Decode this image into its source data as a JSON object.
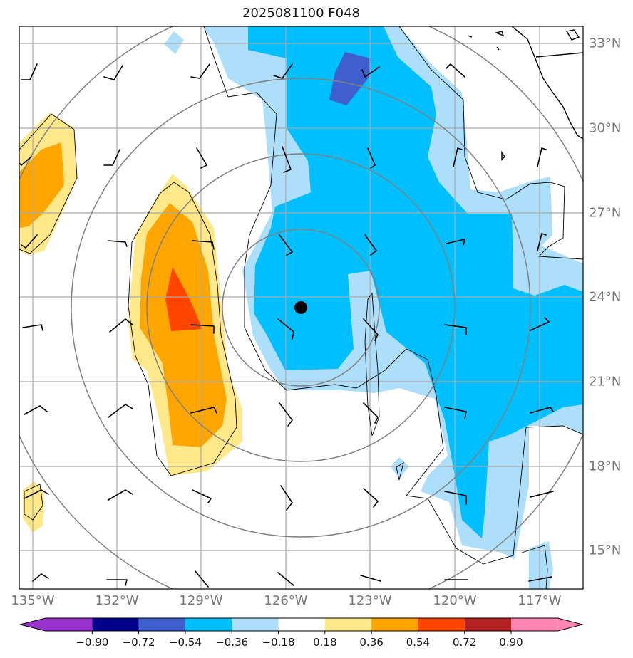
{
  "title": "2025081100 F048",
  "map": {
    "projection": "lat-lon",
    "lon_range_deg": [
      -135.5,
      -115.3
    ],
    "lat_range_deg": [
      13.8,
      33.8
    ],
    "longitude_ticks": [
      {
        "value": -135,
        "label": "135°W"
      },
      {
        "value": -132,
        "label": "132°W"
      },
      {
        "value": -129,
        "label": "129°W"
      },
      {
        "value": -126,
        "label": "126°W"
      },
      {
        "value": -123,
        "label": "123°W"
      },
      {
        "value": -120,
        "label": "120°W"
      },
      {
        "value": -117,
        "label": "117°W"
      }
    ],
    "latitude_ticks": [
      {
        "value": 33,
        "label": "33°N"
      },
      {
        "value": 30,
        "label": "30°N"
      },
      {
        "value": 27,
        "label": "27°N"
      },
      {
        "value": 24,
        "label": "24°N"
      },
      {
        "value": 21,
        "label": "21°N"
      },
      {
        "value": 18,
        "label": "18°N"
      },
      {
        "value": 15,
        "label": "15°N"
      }
    ],
    "gridlines": true,
    "center_marker": {
      "lon": -125.6,
      "lat": 23.6
    },
    "range_rings_deg": [
      2.8,
      5.5,
      8.2,
      11.0
    ],
    "colors": {
      "gridline": "#aaaaaa",
      "range_ring": "#808080",
      "coastline": "#000000",
      "wind_barb": "#000000"
    },
    "shaded_field": {
      "description_levels": [
        -0.9,
        -0.72,
        -0.54,
        -0.36,
        -0.18,
        0.18,
        0.36,
        0.54,
        0.72,
        0.9
      ]
    },
    "wind_barb_grid": {
      "lons": [
        -135,
        -132,
        -129,
        -126,
        -123,
        -120,
        -117
      ],
      "lats": [
        33,
        30,
        27,
        24,
        21,
        18,
        15
      ]
    }
  },
  "colorbar": {
    "extend": "both",
    "colors": [
      "#9932CC",
      "#00008B",
      "#3F5FCF",
      "#00BFFF",
      "#ADDEFA",
      "#FFFFFF",
      "#FFE88A",
      "#FFA500",
      "#FF4500",
      "#B22222",
      "#FF85B3"
    ],
    "min_color": "#9932CC",
    "max_color": "#FF85B3",
    "labels": [
      "−0.90",
      "−0.72",
      "−0.54",
      "−0.36",
      "−0.18",
      "0.18",
      "0.36",
      "0.54",
      "0.72",
      "0.90"
    ]
  }
}
